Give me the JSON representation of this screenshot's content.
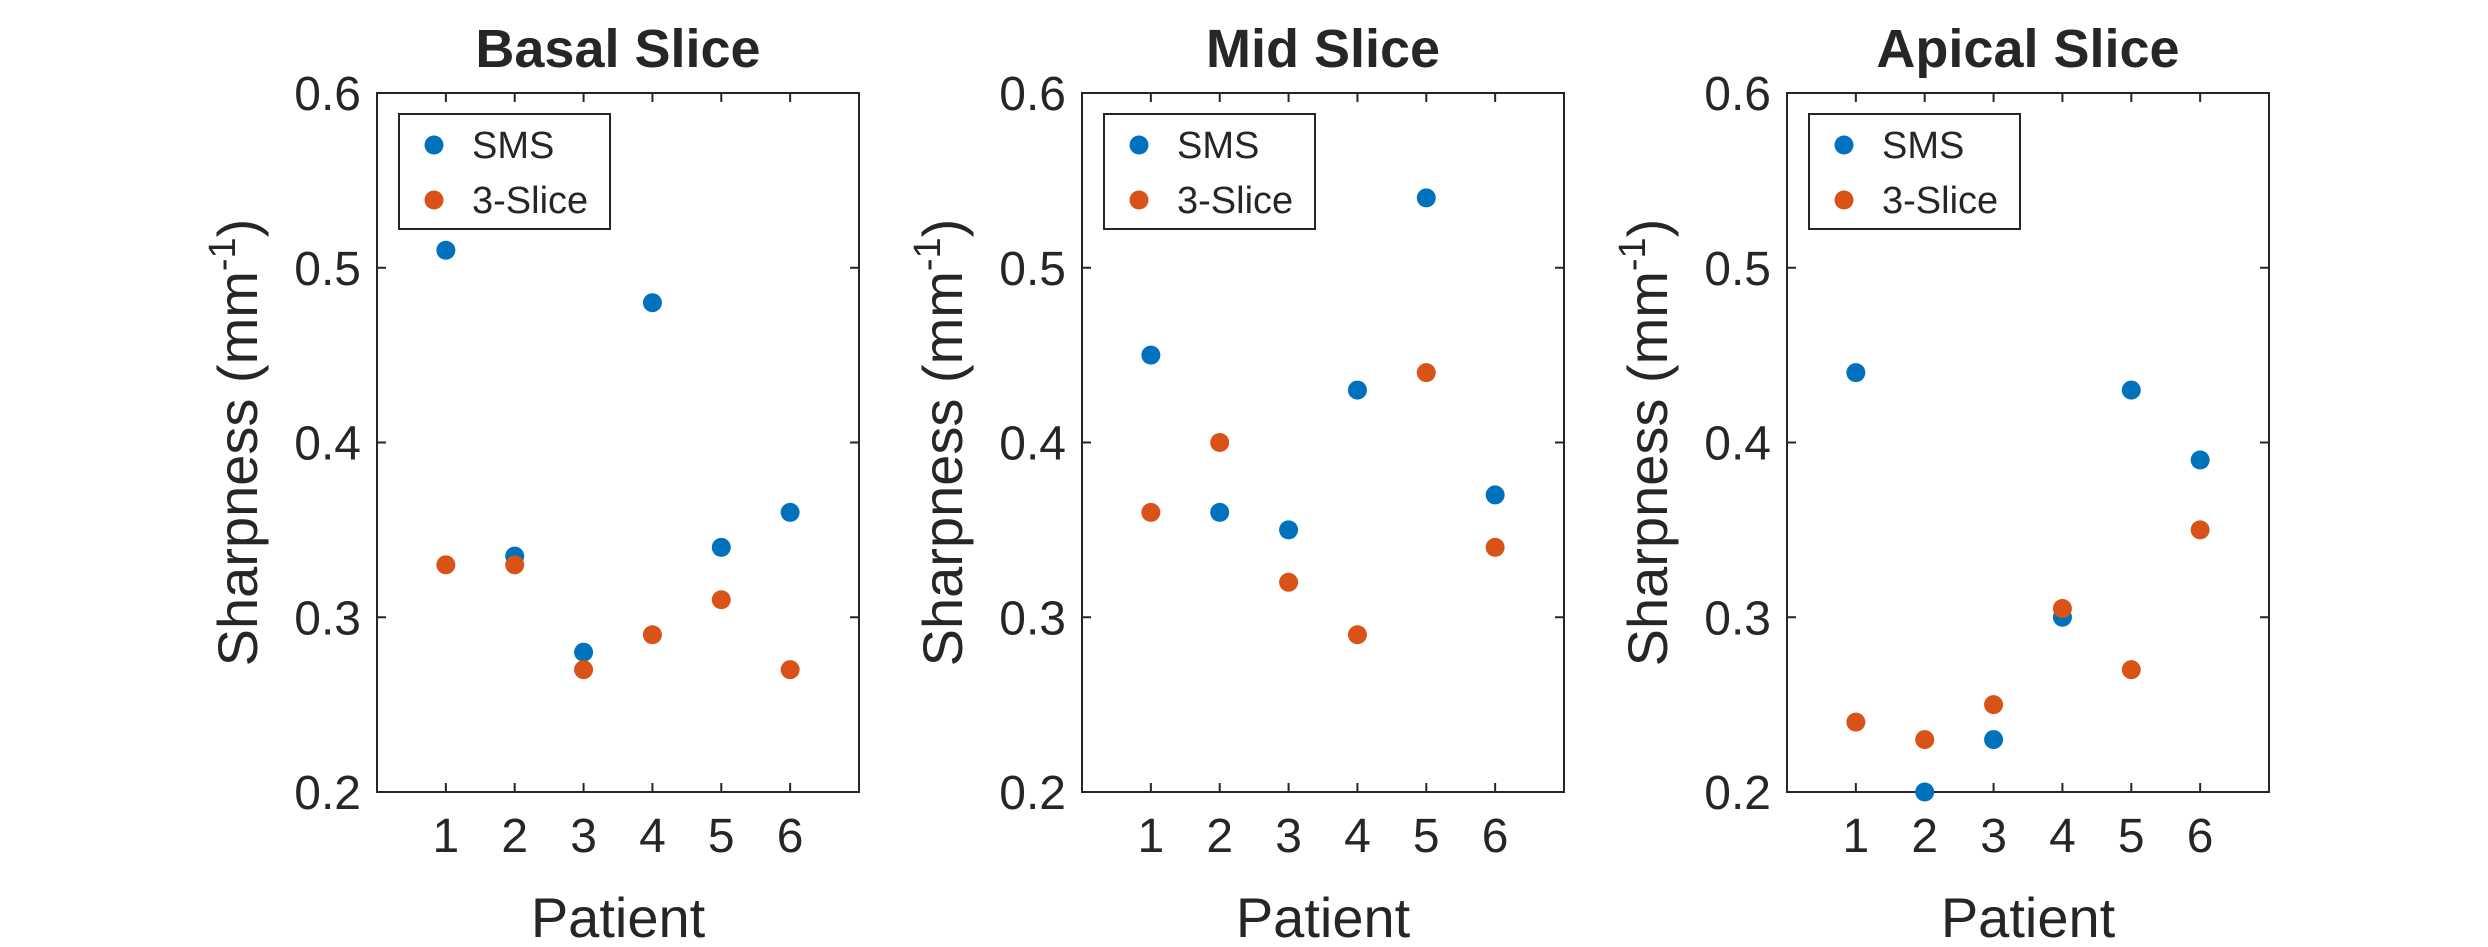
{
  "figure": {
    "colors": {
      "sms": "#0072BD",
      "three_slice": "#D95319",
      "axis": "#262626"
    }
  },
  "chart_data": [
    {
      "type": "scatter",
      "title": "Basal Slice",
      "xlabel": "Patient",
      "ylabel": "Sharpness (mm",
      "ylabel_sup": "-1",
      "ylabel_close": ")",
      "xlim": [
        0,
        7
      ],
      "ylim": [
        0.2,
        0.6
      ],
      "xticks": [
        1,
        2,
        3,
        4,
        5,
        6
      ],
      "yticks": [
        "0.2",
        "0.3",
        "0.4",
        "0.5",
        "0.6"
      ],
      "ytick_values": [
        0.2,
        0.3,
        0.4,
        0.5,
        0.6
      ],
      "x": [
        1,
        2,
        3,
        4,
        5,
        6
      ],
      "series": [
        {
          "name": "SMS",
          "values": [
            0.51,
            0.335,
            0.28,
            0.48,
            0.34,
            0.36
          ]
        },
        {
          "name": "3-Slice",
          "values": [
            0.33,
            0.33,
            0.27,
            0.29,
            0.31,
            0.27
          ]
        }
      ],
      "legend_position": "top-left"
    },
    {
      "type": "scatter",
      "title": "Mid Slice",
      "xlabel": "Patient",
      "ylabel": "Sharpness (mm",
      "ylabel_sup": "-1",
      "ylabel_close": ")",
      "xlim": [
        0,
        7
      ],
      "ylim": [
        0.2,
        0.6
      ],
      "xticks": [
        1,
        2,
        3,
        4,
        5,
        6
      ],
      "yticks": [
        "0.2",
        "0.3",
        "0.4",
        "0.5",
        "0.6"
      ],
      "ytick_values": [
        0.2,
        0.3,
        0.4,
        0.5,
        0.6
      ],
      "x": [
        1,
        2,
        3,
        4,
        5,
        6
      ],
      "series": [
        {
          "name": "SMS",
          "values": [
            0.45,
            0.36,
            0.35,
            0.43,
            0.54,
            0.37
          ]
        },
        {
          "name": "3-Slice",
          "values": [
            0.36,
            0.4,
            0.32,
            0.29,
            0.44,
            0.34
          ]
        }
      ],
      "legend_position": "top-left"
    },
    {
      "type": "scatter",
      "title": "Apical Slice",
      "xlabel": "Patient",
      "ylabel": "Sharpness (mm",
      "ylabel_sup": "-1",
      "ylabel_close": ")",
      "xlim": [
        0,
        7
      ],
      "ylim": [
        0.2,
        0.6
      ],
      "xticks": [
        1,
        2,
        3,
        4,
        5,
        6
      ],
      "yticks": [
        "0.2",
        "0.3",
        "0.4",
        "0.5",
        "0.6"
      ],
      "ytick_values": [
        0.2,
        0.3,
        0.4,
        0.5,
        0.6
      ],
      "x": [
        1,
        2,
        3,
        4,
        5,
        6
      ],
      "series": [
        {
          "name": "SMS",
          "values": [
            0.44,
            0.2,
            0.23,
            0.3,
            0.43,
            0.39
          ]
        },
        {
          "name": "3-Slice",
          "values": [
            0.24,
            0.23,
            0.25,
            0.305,
            0.27,
            0.35
          ]
        }
      ],
      "legend_position": "top-left"
    }
  ]
}
